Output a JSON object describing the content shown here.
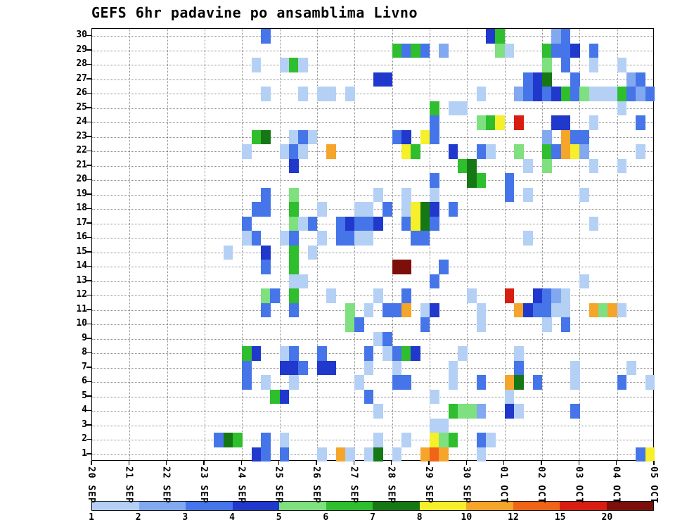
{
  "title": "GEFS 6hr padavine po ansamblima Livno",
  "chart_data": {
    "type": "heatmap",
    "title": "GEFS 6hr padavine po ansamblima Livno",
    "n_rows": 30,
    "n_cols": 60,
    "steps_per_day": 4,
    "grid": "dotted",
    "y_tick_labels": [
      "30",
      "29",
      "28",
      "27",
      "26",
      "25",
      "24",
      "23",
      "22",
      "21",
      "20",
      "19",
      "18",
      "17",
      "16",
      "15",
      "14",
      "13",
      "12",
      "11",
      "10",
      "9",
      "8",
      "7",
      "6",
      "5",
      "4",
      "3",
      "2",
      "1"
    ],
    "x_tick_labels": [
      "20 SEP",
      "21 SEP",
      "22 SEP",
      "23 SEP",
      "24 SEP",
      "25 SEP",
      "26 SEP",
      "27 SEP",
      "28 SEP",
      "29 SEP",
      "30 SEP",
      "01 OCT",
      "02 OCT",
      "03 OCT",
      "04 OCT",
      "05 OCT"
    ],
    "colorbar": {
      "labels": [
        "1",
        "2",
        "3",
        "4",
        "5",
        "6",
        "7",
        "8",
        "10",
        "12",
        "15",
        "20"
      ],
      "colors": [
        "#b4d0f5",
        "#82a8f0",
        "#4575e8",
        "#2038cc",
        "#7fe07f",
        "#2ebe2e",
        "#157815",
        "#f5f02a",
        "#f5a52a",
        "#ef6416",
        "#d81e10",
        "#7d0f0a"
      ],
      "thresholds": [
        2,
        3,
        4,
        5,
        6,
        7,
        8,
        10,
        12,
        15,
        20
      ]
    },
    "cells": [
      [
        30,
        18,
        3
      ],
      [
        30,
        42,
        4
      ],
      [
        30,
        43,
        6
      ],
      [
        30,
        49,
        2
      ],
      [
        30,
        50,
        3
      ],
      [
        29,
        32,
        6
      ],
      [
        29,
        33,
        3
      ],
      [
        29,
        34,
        6
      ],
      [
        29,
        35,
        3
      ],
      [
        29,
        37,
        2
      ],
      [
        29,
        43,
        5
      ],
      [
        29,
        44,
        1
      ],
      [
        29,
        48,
        6
      ],
      [
        29,
        49,
        3
      ],
      [
        29,
        50,
        3
      ],
      [
        29,
        51,
        4
      ],
      [
        29,
        53,
        3
      ],
      [
        28,
        17,
        1
      ],
      [
        28,
        20,
        1
      ],
      [
        28,
        21,
        6
      ],
      [
        28,
        22,
        1
      ],
      [
        28,
        48,
        5
      ],
      [
        28,
        50,
        3
      ],
      [
        28,
        53,
        1
      ],
      [
        28,
        56,
        1
      ],
      [
        27,
        30,
        4
      ],
      [
        27,
        31,
        4
      ],
      [
        27,
        46,
        3
      ],
      [
        27,
        47,
        4
      ],
      [
        27,
        48,
        7
      ],
      [
        27,
        51,
        3
      ],
      [
        27,
        57,
        2
      ],
      [
        27,
        58,
        3
      ],
      [
        26,
        18,
        1
      ],
      [
        26,
        22,
        1
      ],
      [
        26,
        24,
        1
      ],
      [
        26,
        25,
        1
      ],
      [
        26,
        27,
        1
      ],
      [
        26,
        41,
        1
      ],
      [
        26,
        45,
        2
      ],
      [
        26,
        46,
        3
      ],
      [
        26,
        47,
        4
      ],
      [
        26,
        48,
        3
      ],
      [
        26,
        49,
        4
      ],
      [
        26,
        50,
        6
      ],
      [
        26,
        51,
        3
      ],
      [
        26,
        52,
        5
      ],
      [
        26,
        53,
        1
      ],
      [
        26,
        54,
        1
      ],
      [
        26,
        55,
        1
      ],
      [
        26,
        56,
        6
      ],
      [
        26,
        57,
        3
      ],
      [
        26,
        58,
        2
      ],
      [
        26,
        59,
        3
      ],
      [
        25,
        36,
        6
      ],
      [
        25,
        38,
        1
      ],
      [
        25,
        39,
        1
      ],
      [
        25,
        56,
        1
      ],
      [
        24,
        36,
        3
      ],
      [
        24,
        41,
        5
      ],
      [
        24,
        42,
        6
      ],
      [
        24,
        43,
        8
      ],
      [
        24,
        45,
        15
      ],
      [
        24,
        49,
        4
      ],
      [
        24,
        50,
        4
      ],
      [
        24,
        53,
        1
      ],
      [
        24,
        58,
        3
      ],
      [
        23,
        17,
        6
      ],
      [
        23,
        18,
        7
      ],
      [
        23,
        21,
        1
      ],
      [
        23,
        22,
        3
      ],
      [
        23,
        23,
        1
      ],
      [
        23,
        32,
        3
      ],
      [
        23,
        33,
        4
      ],
      [
        23,
        35,
        8
      ],
      [
        23,
        36,
        3
      ],
      [
        23,
        48,
        2
      ],
      [
        23,
        50,
        10
      ],
      [
        23,
        51,
        3
      ],
      [
        23,
        52,
        3
      ],
      [
        22,
        16,
        1
      ],
      [
        22,
        20,
        1
      ],
      [
        22,
        21,
        3
      ],
      [
        22,
        22,
        1
      ],
      [
        22,
        25,
        10
      ],
      [
        22,
        33,
        8
      ],
      [
        22,
        34,
        6
      ],
      [
        22,
        38,
        4
      ],
      [
        22,
        41,
        3
      ],
      [
        22,
        42,
        1
      ],
      [
        22,
        45,
        5
      ],
      [
        22,
        48,
        6
      ],
      [
        22,
        49,
        3
      ],
      [
        22,
        50,
        10
      ],
      [
        22,
        51,
        8
      ],
      [
        22,
        52,
        2
      ],
      [
        22,
        58,
        1
      ],
      [
        21,
        21,
        4
      ],
      [
        21,
        39,
        6
      ],
      [
        21,
        40,
        7
      ],
      [
        21,
        46,
        1
      ],
      [
        21,
        48,
        5
      ],
      [
        21,
        53,
        1
      ],
      [
        21,
        56,
        1
      ],
      [
        20,
        36,
        3
      ],
      [
        20,
        40,
        7
      ],
      [
        20,
        41,
        6
      ],
      [
        20,
        44,
        3
      ],
      [
        19,
        18,
        3
      ],
      [
        19,
        21,
        5
      ],
      [
        19,
        30,
        1
      ],
      [
        19,
        33,
        1
      ],
      [
        19,
        36,
        1
      ],
      [
        19,
        44,
        3
      ],
      [
        19,
        46,
        1
      ],
      [
        19,
        52,
        1
      ],
      [
        18,
        17,
        3
      ],
      [
        18,
        18,
        3
      ],
      [
        18,
        21,
        6
      ],
      [
        18,
        24,
        1
      ],
      [
        18,
        28,
        1
      ],
      [
        18,
        29,
        1
      ],
      [
        18,
        31,
        3
      ],
      [
        18,
        33,
        1
      ],
      [
        18,
        34,
        8
      ],
      [
        18,
        35,
        7
      ],
      [
        18,
        36,
        4
      ],
      [
        18,
        38,
        3
      ],
      [
        17,
        16,
        3
      ],
      [
        17,
        21,
        5
      ],
      [
        17,
        22,
        1
      ],
      [
        17,
        23,
        3
      ],
      [
        17,
        26,
        3
      ],
      [
        17,
        27,
        4
      ],
      [
        17,
        28,
        3
      ],
      [
        17,
        29,
        3
      ],
      [
        17,
        30,
        4
      ],
      [
        17,
        33,
        3
      ],
      [
        17,
        34,
        8
      ],
      [
        17,
        35,
        7
      ],
      [
        17,
        36,
        3
      ],
      [
        17,
        53,
        1
      ],
      [
        16,
        16,
        1
      ],
      [
        16,
        17,
        3
      ],
      [
        16,
        20,
        1
      ],
      [
        16,
        21,
        3
      ],
      [
        16,
        24,
        1
      ],
      [
        16,
        26,
        3
      ],
      [
        16,
        27,
        3
      ],
      [
        16,
        28,
        1
      ],
      [
        16,
        29,
        1
      ],
      [
        16,
        34,
        3
      ],
      [
        16,
        35,
        3
      ],
      [
        16,
        46,
        1
      ],
      [
        15,
        14,
        1
      ],
      [
        15,
        18,
        4
      ],
      [
        15,
        21,
        6
      ],
      [
        15,
        23,
        1
      ],
      [
        14,
        18,
        3
      ],
      [
        14,
        21,
        6
      ],
      [
        14,
        32,
        21
      ],
      [
        14,
        33,
        21
      ],
      [
        14,
        37,
        3
      ],
      [
        13,
        21,
        1
      ],
      [
        13,
        22,
        1
      ],
      [
        13,
        36,
        3
      ],
      [
        13,
        52,
        1
      ],
      [
        12,
        18,
        5
      ],
      [
        12,
        19,
        3
      ],
      [
        12,
        21,
        6
      ],
      [
        12,
        25,
        1
      ],
      [
        12,
        30,
        1
      ],
      [
        12,
        33,
        3
      ],
      [
        12,
        40,
        1
      ],
      [
        12,
        44,
        15
      ],
      [
        12,
        47,
        4
      ],
      [
        12,
        48,
        3
      ],
      [
        12,
        49,
        2
      ],
      [
        12,
        50,
        1
      ],
      [
        11,
        18,
        3
      ],
      [
        11,
        21,
        3
      ],
      [
        11,
        27,
        5
      ],
      [
        11,
        29,
        1
      ],
      [
        11,
        31,
        3
      ],
      [
        11,
        32,
        3
      ],
      [
        11,
        33,
        10
      ],
      [
        11,
        35,
        1
      ],
      [
        11,
        36,
        4
      ],
      [
        11,
        41,
        1
      ],
      [
        11,
        45,
        10
      ],
      [
        11,
        46,
        4
      ],
      [
        11,
        47,
        3
      ],
      [
        11,
        48,
        3
      ],
      [
        11,
        49,
        1
      ],
      [
        11,
        50,
        1
      ],
      [
        11,
        53,
        10
      ],
      [
        11,
        54,
        5
      ],
      [
        11,
        55,
        10
      ],
      [
        11,
        56,
        1
      ],
      [
        10,
        27,
        5
      ],
      [
        10,
        28,
        3
      ],
      [
        10,
        35,
        3
      ],
      [
        10,
        41,
        1
      ],
      [
        10,
        48,
        1
      ],
      [
        10,
        50,
        3
      ],
      [
        9,
        30,
        1
      ],
      [
        9,
        31,
        3
      ],
      [
        8,
        16,
        6
      ],
      [
        8,
        17,
        4
      ],
      [
        8,
        20,
        1
      ],
      [
        8,
        21,
        3
      ],
      [
        8,
        24,
        3
      ],
      [
        8,
        29,
        3
      ],
      [
        8,
        31,
        1
      ],
      [
        8,
        32,
        3
      ],
      [
        8,
        33,
        6
      ],
      [
        8,
        34,
        4
      ],
      [
        8,
        39,
        1
      ],
      [
        8,
        45,
        1
      ],
      [
        7,
        16,
        3
      ],
      [
        7,
        20,
        4
      ],
      [
        7,
        21,
        4
      ],
      [
        7,
        22,
        3
      ],
      [
        7,
        24,
        4
      ],
      [
        7,
        25,
        4
      ],
      [
        7,
        29,
        1
      ],
      [
        7,
        32,
        1
      ],
      [
        7,
        38,
        1
      ],
      [
        7,
        45,
        3
      ],
      [
        7,
        51,
        1
      ],
      [
        7,
        57,
        1
      ],
      [
        6,
        16,
        3
      ],
      [
        6,
        18,
        1
      ],
      [
        6,
        21,
        1
      ],
      [
        6,
        28,
        1
      ],
      [
        6,
        32,
        3
      ],
      [
        6,
        33,
        3
      ],
      [
        6,
        38,
        1
      ],
      [
        6,
        41,
        3
      ],
      [
        6,
        44,
        10
      ],
      [
        6,
        45,
        7
      ],
      [
        6,
        47,
        3
      ],
      [
        6,
        51,
        1
      ],
      [
        6,
        56,
        3
      ],
      [
        6,
        59,
        1
      ],
      [
        5,
        19,
        6
      ],
      [
        5,
        20,
        4
      ],
      [
        5,
        29,
        3
      ],
      [
        5,
        36,
        1
      ],
      [
        5,
        44,
        1
      ],
      [
        4,
        30,
        1
      ],
      [
        4,
        38,
        6
      ],
      [
        4,
        39,
        5
      ],
      [
        4,
        40,
        5
      ],
      [
        4,
        41,
        2
      ],
      [
        4,
        44,
        4
      ],
      [
        4,
        45,
        1
      ],
      [
        4,
        51,
        3
      ],
      [
        3,
        36,
        1
      ],
      [
        3,
        37,
        1
      ],
      [
        2,
        13,
        3
      ],
      [
        2,
        14,
        7
      ],
      [
        2,
        15,
        6
      ],
      [
        2,
        18,
        3
      ],
      [
        2,
        20,
        1
      ],
      [
        2,
        30,
        1
      ],
      [
        2,
        33,
        1
      ],
      [
        2,
        36,
        8
      ],
      [
        2,
        37,
        5
      ],
      [
        2,
        38,
        6
      ],
      [
        2,
        41,
        3
      ],
      [
        2,
        42,
        1
      ],
      [
        1,
        17,
        4
      ],
      [
        1,
        18,
        3
      ],
      [
        1,
        20,
        3
      ],
      [
        1,
        24,
        1
      ],
      [
        1,
        26,
        10
      ],
      [
        1,
        27,
        1
      ],
      [
        1,
        29,
        1
      ],
      [
        1,
        30,
        7
      ],
      [
        1,
        32,
        1
      ],
      [
        1,
        35,
        10
      ],
      [
        1,
        36,
        12
      ],
      [
        1,
        37,
        10
      ],
      [
        1,
        41,
        1
      ],
      [
        1,
        58,
        3
      ],
      [
        1,
        59,
        8
      ]
    ]
  }
}
